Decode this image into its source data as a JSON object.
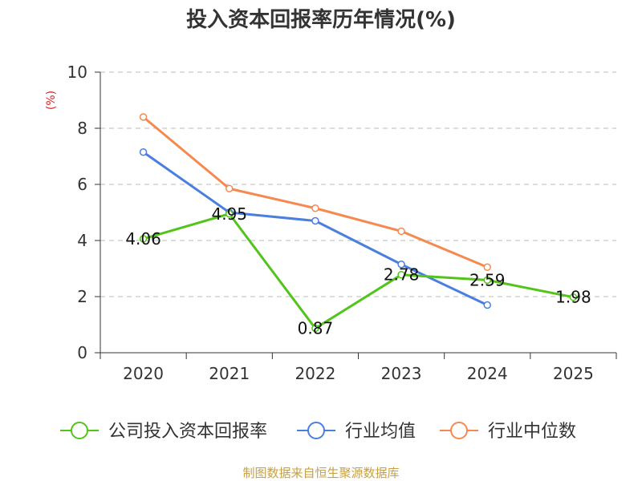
{
  "chart_data": {
    "type": "line",
    "title": "投入资本回报率历年情况(%)",
    "xlabel": "",
    "ylabel": "(%)",
    "categories": [
      "2020",
      "2021",
      "2022",
      "2023",
      "2024",
      "2025"
    ],
    "ylim": [
      0,
      10
    ],
    "yticks": [
      0,
      2,
      4,
      6,
      8,
      10
    ],
    "grid": true,
    "legend_position": "bottom",
    "series": [
      {
        "name": "公司投入资本回报率",
        "color": "#52c41a",
        "values": [
          4.06,
          4.95,
          0.87,
          2.78,
          2.59,
          1.98
        ],
        "labels": [
          "4.06",
          "4.95",
          "0.87",
          "2.78",
          "2.59",
          "1.98"
        ]
      },
      {
        "name": "行业均值",
        "color": "#4a7fe0",
        "values": [
          7.15,
          5.0,
          4.7,
          3.15,
          1.7,
          null
        ]
      },
      {
        "name": "行业中位数",
        "color": "#f5894f",
        "values": [
          8.4,
          5.85,
          5.15,
          4.33,
          3.05,
          null
        ]
      }
    ],
    "source": "制图数据来自恒生聚源数据库",
    "colors": {
      "ylabel": "#e02020",
      "source": "#c8a040",
      "axis": "#333333",
      "grid": "#bbbbbb"
    }
  }
}
